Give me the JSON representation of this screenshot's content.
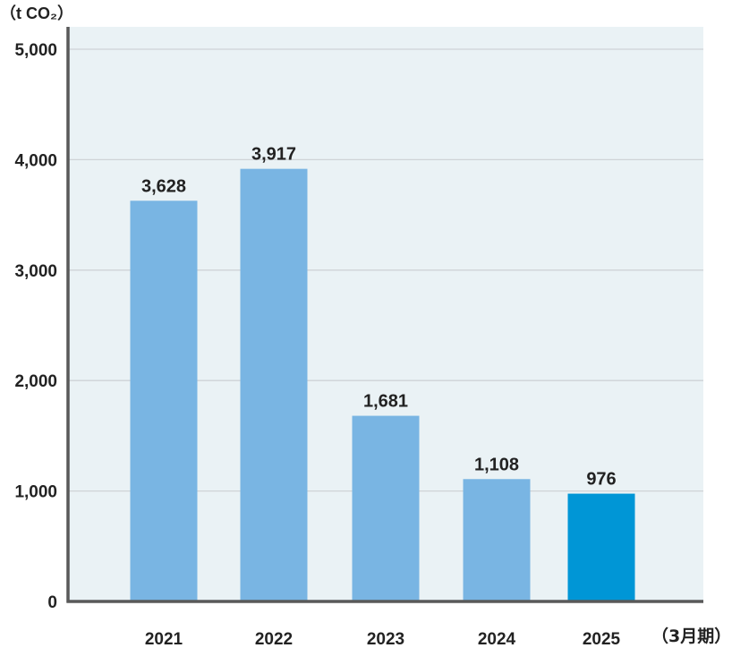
{
  "chart_data": {
    "type": "bar",
    "y_unit_label": "（t CO₂）",
    "x_unit_label": "（3月期）",
    "categories": [
      "2021",
      "2022",
      "2023",
      "2024",
      "2025"
    ],
    "values": [
      3628,
      3917,
      1681,
      1108,
      976
    ],
    "value_labels": [
      "3,628",
      "3,917",
      "1,681",
      "1,108",
      "976"
    ],
    "ylim": [
      0,
      5000
    ],
    "y_ticks": [
      0,
      1000,
      2000,
      3000,
      4000,
      5000
    ],
    "y_tick_labels": [
      "0",
      "1,000",
      "2,000",
      "3,000",
      "4,000",
      "5,000"
    ],
    "grid": true,
    "colors": {
      "plot_background": "#eaf2f5",
      "bar": "#79b5e3",
      "bar_highlight": "#0096d6",
      "gridline": "#cfd3d6",
      "axis": "#595959"
    },
    "highlight_category": "2025"
  }
}
